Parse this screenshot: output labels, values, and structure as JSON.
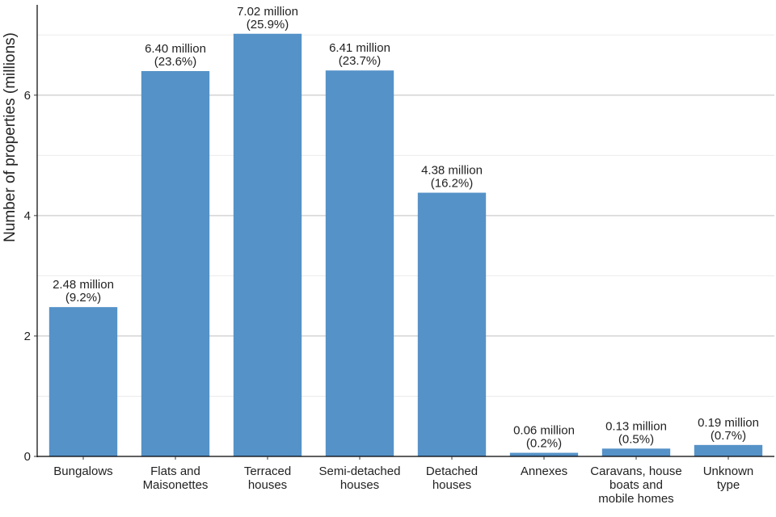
{
  "chart_data": {
    "type": "bar",
    "ylabel": "Number of properties (millions)",
    "xlabel": "",
    "ylim": [
      0,
      7.5
    ],
    "yticks": [
      0,
      2,
      4,
      6
    ],
    "grid": true,
    "bar_color": "#5592c8",
    "categories": [
      [
        "Bungalows"
      ],
      [
        "Flats and",
        "Maisonettes"
      ],
      [
        "Terraced",
        "houses"
      ],
      [
        "Semi-detached",
        "houses"
      ],
      [
        "Detached",
        "houses"
      ],
      [
        "Annexes"
      ],
      [
        "Caravans, house",
        "boats and",
        "mobile homes"
      ],
      [
        "Unknown",
        "type"
      ]
    ],
    "values": [
      2.48,
      6.4,
      7.02,
      6.41,
      4.38,
      0.06,
      0.13,
      0.19
    ],
    "labels": [
      [
        "2.48 million",
        "(9.2%)"
      ],
      [
        "6.40 million",
        "(23.6%)"
      ],
      [
        "7.02 million",
        "(25.9%)"
      ],
      [
        "6.41 million",
        "(23.7%)"
      ],
      [
        "4.38 million",
        "(16.2%)"
      ],
      [
        "0.06 million",
        "(0.2%)"
      ],
      [
        "0.13 million",
        "(0.5%)"
      ],
      [
        "0.19 million",
        "(0.7%)"
      ]
    ]
  }
}
